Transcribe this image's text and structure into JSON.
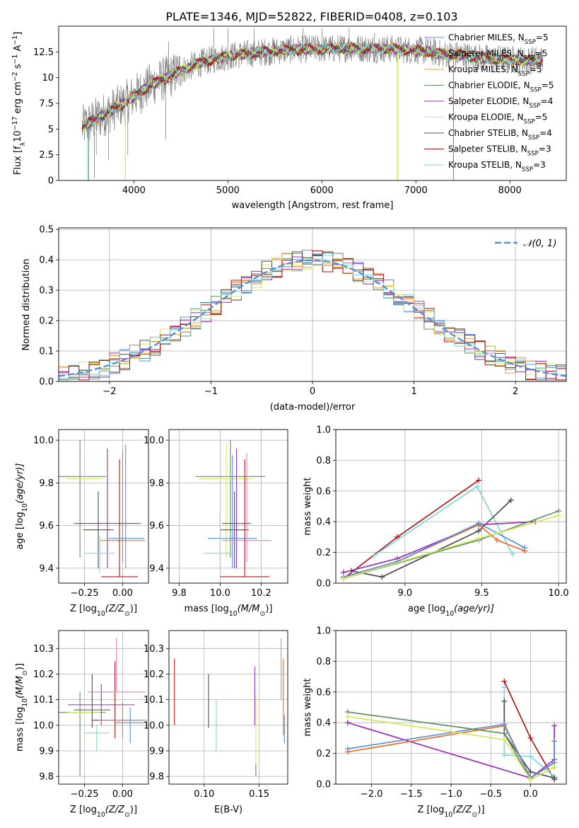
{
  "figure": {
    "title": "PLATE=1346, MJD=52822, FIBERID=0408, z=0.103"
  },
  "colors": {
    "chabrier_miles": "#5b8fd6",
    "salpeter_miles": "#e8702a",
    "kroupa_miles": "#e8a33a",
    "chabrier_elodie": "#5f8f66",
    "salpeter_elodie": "#9b2fb5",
    "kroupa_elodie": "#d6e85a",
    "chabrier_stelib": "#4d4d4d",
    "salpeter_stelib": "#b01818",
    "kroupa_stelib": "#7fd6d6",
    "pink": "#e87fb0",
    "data": "#808080"
  },
  "chart_data": [
    {
      "id": "spectrum",
      "type": "line",
      "xlabel": "wavelength [Angstrom, rest frame]",
      "ylabel_parts": [
        "Flux [f",
        "λ",
        "10",
        "−17",
        " erg cm",
        "−2",
        " s",
        "−1",
        " A",
        "−1",
        "]"
      ],
      "xlim": [
        3200,
        8600
      ],
      "ylim": [
        0,
        15
      ],
      "xticks": [
        4000,
        5000,
        6000,
        7000,
        8000
      ],
      "yticks": [
        "0.0",
        "2.5",
        "5.0",
        "7.5",
        "10.0",
        "12.5"
      ],
      "ytick_values": [
        0,
        2.5,
        5,
        7.5,
        10,
        12.5
      ],
      "continuum_x": [
        3450,
        3600,
        3700,
        3800,
        3900,
        4000,
        4100,
        4200,
        4300,
        4400,
        4500,
        4700,
        4900,
        5100,
        5300,
        5500,
        5700,
        5900,
        6100,
        6300,
        6500,
        6700,
        6900,
        7100,
        7300,
        7500,
        7700,
        7900,
        8100,
        8350
      ],
      "continuum_y": [
        5.2,
        6.0,
        6.5,
        7.0,
        7.5,
        8.2,
        8.8,
        9.4,
        9.8,
        10.2,
        10.7,
        11.4,
        11.9,
        12.2,
        12.4,
        12.6,
        12.7,
        12.8,
        12.8,
        12.9,
        12.8,
        12.8,
        12.7,
        12.6,
        12.3,
        12.2,
        11.9,
        11.8,
        11.7,
        11.7
      ],
      "drops": [
        {
          "x": 3520,
          "y": 0.0
        },
        {
          "x": 3580,
          "y": 0.2
        },
        {
          "x": 3600,
          "y": 2.5
        },
        {
          "x": 3730,
          "y": 2.0
        },
        {
          "x": 3910,
          "y": 0.0
        },
        {
          "x": 3935,
          "y": 2.5
        },
        {
          "x": 4340,
          "y": 4.0
        },
        {
          "x": 6805,
          "y": 0.0
        },
        {
          "x": 7400,
          "y": 0.0
        }
      ],
      "spikes": [
        {
          "x": 4370,
          "y": 13.5
        },
        {
          "x": 4850,
          "y": 14.8
        },
        {
          "x": 5000,
          "y": 14.8
        },
        {
          "x": 5280,
          "y": 14.8
        },
        {
          "x": 5800,
          "y": 14.8
        },
        {
          "x": 6000,
          "y": 14.8
        },
        {
          "x": 6290,
          "y": 14.8
        },
        {
          "x": 6560,
          "y": 14.3
        }
      ],
      "series": [
        {
          "label_parts": [
            "Chabrier MILES, N",
            "SSP",
            "=5"
          ],
          "color": "#5b8fd6"
        },
        {
          "label_parts": [
            "Salpeter MILES, N",
            "SSP",
            "=5"
          ],
          "color": "#e8702a"
        },
        {
          "label_parts": [
            "Kroupa MILES, N",
            "SSP",
            "=5"
          ],
          "color": "#e8a33a"
        },
        {
          "label_parts": [
            "Chabrier ELODIE, N",
            "SSP",
            "=5"
          ],
          "color": "#5f8f66"
        },
        {
          "label_parts": [
            "Salpeter ELODIE, N",
            "SSP",
            "=4"
          ],
          "color": "#9b2fb5"
        },
        {
          "label_parts": [
            "Kroupa ELODIE, N",
            "SSP",
            "=5"
          ],
          "color": "#d6e85a"
        },
        {
          "label_parts": [
            "Chabrier STELIB, N",
            "SSP",
            "=4"
          ],
          "color": "#4d4d4d"
        },
        {
          "label_parts": [
            "Salpeter STELIB, N",
            "SSP",
            "=3"
          ],
          "color": "#b01818"
        },
        {
          "label_parts": [
            "Kroupa STELIB, N",
            "SSP",
            "=3"
          ],
          "color": "#7fd6d6"
        }
      ]
    },
    {
      "id": "residuals",
      "type": "histogram",
      "xlabel": "(data-model)/error",
      "ylabel": "Normed distribution",
      "xlim": [
        -2.5,
        2.5
      ],
      "ylim": [
        0,
        0.505
      ],
      "xticks": [
        -2,
        -1,
        0,
        1,
        2
      ],
      "xticklabels": [
        "−2",
        "−1",
        "0",
        "1",
        "2"
      ],
      "yticks": [
        0.0,
        0.1,
        0.2,
        0.3,
        0.4,
        0.5
      ],
      "yticklabels": [
        "0.0",
        "0.1",
        "0.2",
        "0.3",
        "0.4",
        "0.5"
      ],
      "bin_width": 0.1,
      "normal_label": "𝒩(0, 1)",
      "normal_color": "#5b8fd6",
      "grid": true
    },
    {
      "id": "age_vs_Z",
      "type": "errorbar",
      "xlabel_parts": [
        "Z [log",
        "10",
        "(Z/Z",
        "⊙",
        ")]"
      ],
      "ylabel_parts": [
        "age  [log",
        "10",
        "(age/yr)]"
      ],
      "xlim": [
        -0.42,
        0.17
      ],
      "ylim": [
        9.33,
        10.05
      ],
      "xticks": [
        -0.25,
        0.0
      ],
      "xticklabels": [
        "−0.25",
        "0.00"
      ],
      "yticks": [
        9.4,
        9.6,
        9.8,
        10.0
      ],
      "yticklabels": [
        "9.4",
        "9.6",
        "9.8",
        "10.0"
      ],
      "points": [
        {
          "x": -0.28,
          "xerr": 0.17,
          "y": 9.83,
          "yerr": [
            9.45,
            10.0
          ],
          "color": "#5f8f66"
        },
        {
          "x": -0.25,
          "xerr": 0.12,
          "y": 9.82,
          "yerr": [
            9.45,
            9.99
          ],
          "color": "#d6e85a"
        },
        {
          "x": -0.16,
          "xerr": 0.1,
          "y": 9.58,
          "yerr": [
            9.4,
            9.76
          ],
          "color": "#4d4d4d"
        },
        {
          "x": -0.1,
          "xerr": 0.22,
          "y": 9.61,
          "yerr": [
            9.4,
            9.96
          ],
          "color": "#9b2fb5"
        },
        {
          "x": 0.0,
          "xerr": 0.15,
          "y": 9.53,
          "yerr": [
            9.43,
            9.95
          ],
          "color": "#e8702a"
        },
        {
          "x": -0.15,
          "xerr": 0.1,
          "y": 9.47,
          "yerr": [
            9.38,
            9.55
          ],
          "color": "#7fd6d6"
        },
        {
          "x": -0.02,
          "xerr": 0.12,
          "y": 9.36,
          "yerr": [
            9.36,
            9.91
          ],
          "color": "#b01818"
        },
        {
          "x": 0.02,
          "xerr": 0.12,
          "y": 9.54,
          "yerr": [
            9.4,
            9.98
          ],
          "color": "#5b8fd6"
        }
      ]
    },
    {
      "id": "age_vs_mass",
      "type": "errorbar",
      "xlabel_parts": [
        "mass [log",
        "10",
        "(M/M",
        "⊙",
        ")]"
      ],
      "xlim": [
        9.75,
        10.33
      ],
      "ylim": [
        9.33,
        10.05
      ],
      "xticks": [
        9.8,
        10.0,
        10.2
      ],
      "xticklabels": [
        "9.8",
        "10.0",
        "10.2"
      ],
      "yticks": [
        9.4,
        9.6,
        9.8,
        10.0
      ],
      "yticklabels": [
        "9.4",
        "9.6",
        "9.8",
        "10.0"
      ],
      "points": [
        {
          "x": 10.05,
          "xerr": 0.17,
          "y": 9.83,
          "yerr": [
            9.45,
            10.0
          ],
          "color": "#5f8f66"
        },
        {
          "x": 10.03,
          "xerr": 0.13,
          "y": 9.82,
          "yerr": [
            9.45,
            9.99
          ],
          "color": "#d6e85a"
        },
        {
          "x": 10.07,
          "xerr": 0.07,
          "y": 9.58,
          "yerr": [
            9.4,
            9.76
          ],
          "color": "#4d4d4d"
        },
        {
          "x": 10.08,
          "xerr": 0.07,
          "y": 9.61,
          "yerr": [
            9.4,
            9.96
          ],
          "color": "#9b2fb5"
        },
        {
          "x": 10.06,
          "xerr": 0.12,
          "y": 9.54,
          "yerr": [
            9.4,
            9.93
          ],
          "color": "#5b8fd6"
        },
        {
          "x": 10.13,
          "xerr": 0.12,
          "y": 9.53,
          "yerr": [
            9.43,
            9.94
          ],
          "color": "#e87fb0"
        },
        {
          "x": 10.0,
          "xerr": 0.08,
          "y": 9.47,
          "yerr": [
            9.38,
            9.68
          ],
          "color": "#7fd6d6"
        },
        {
          "x": 10.12,
          "xerr": 0.12,
          "y": 9.36,
          "yerr": [
            9.36,
            9.91
          ],
          "color": "#b01818"
        }
      ]
    },
    {
      "id": "weight_vs_age",
      "type": "line",
      "xlabel_parts": [
        "age  [log",
        "10",
        "(age/yr)]"
      ],
      "ylabel": "mass weight",
      "xlim": [
        8.55,
        10.05
      ],
      "ylim": [
        0,
        1
      ],
      "xticks": [
        9.0,
        9.5,
        10.0
      ],
      "xticklabels": [
        "9.0",
        "9.5",
        "10.0"
      ],
      "yticks": [
        0.0,
        0.2,
        0.4,
        0.6,
        0.8,
        1.0
      ],
      "yticklabels": [
        "0.0",
        "0.2",
        "0.4",
        "0.6",
        "0.8",
        "1.0"
      ],
      "series": [
        {
          "color": "#b01818",
          "x": [
            8.6,
            8.95,
            9.48
          ],
          "y": [
            0.03,
            0.3,
            0.67
          ]
        },
        {
          "color": "#7fd6d6",
          "x": [
            8.8,
            9.47,
            9.7
          ],
          "y": [
            0.18,
            0.63,
            0.19
          ]
        },
        {
          "color": "#4d4d4d",
          "x": [
            8.65,
            8.85,
            9.48,
            9.69
          ],
          "y": [
            0.08,
            0.04,
            0.34,
            0.54
          ]
        },
        {
          "color": "#9b2fb5",
          "x": [
            8.6,
            8.95,
            9.48,
            9.85
          ],
          "y": [
            0.07,
            0.16,
            0.38,
            0.4
          ]
        },
        {
          "color": "#e8702a",
          "x": [
            8.6,
            8.95,
            9.48,
            9.6,
            9.78
          ],
          "y": [
            0.04,
            0.14,
            0.38,
            0.28,
            0.21
          ]
        },
        {
          "color": "#5b8fd6",
          "x": [
            8.6,
            8.95,
            9.48,
            9.78
          ],
          "y": [
            0.04,
            0.14,
            0.39,
            0.23
          ]
        },
        {
          "color": "#5f8f66",
          "x": [
            8.6,
            9.48,
            10.0
          ],
          "y": [
            0.03,
            0.28,
            0.47
          ]
        },
        {
          "color": "#d6e85a",
          "x": [
            8.6,
            9.48,
            10.0
          ],
          "y": [
            0.03,
            0.29,
            0.44
          ]
        }
      ]
    },
    {
      "id": "mass_vs_Z",
      "type": "errorbar",
      "xlabel_parts": [
        "Z [log",
        "10",
        "(Z/Z",
        "⊙",
        ")]"
      ],
      "ylabel_parts": [
        "mass [log",
        "10",
        "(M/M",
        "⊙",
        ")]"
      ],
      "xlim": [
        -0.42,
        0.17
      ],
      "ylim": [
        9.77,
        10.37
      ],
      "xticks": [
        -0.25,
        0.0
      ],
      "xticklabels": [
        "−0.25",
        "0.00"
      ],
      "yticks": [
        9.8,
        9.9,
        10.0,
        10.1,
        10.2,
        10.3
      ],
      "yticklabels": [
        "9.8",
        "9.9",
        "10.0",
        "10.1",
        "10.2",
        "10.3"
      ],
      "points": [
        {
          "x": -0.28,
          "xerr": 0.17,
          "y": 10.05,
          "yerr": [
            9.8,
            10.13
          ],
          "color": "#5f8f66"
        },
        {
          "x": -0.25,
          "xerr": 0.11,
          "y": 10.05,
          "yerr": [
            9.85,
            10.1
          ],
          "color": "#d6e85a"
        },
        {
          "x": -0.2,
          "xerr": 0.12,
          "y": 10.06,
          "yerr": [
            9.99,
            10.2
          ],
          "color": "#4d4d4d"
        },
        {
          "x": -0.14,
          "xerr": 0.22,
          "y": 10.08,
          "yerr": [
            10.0,
            10.16
          ],
          "color": "#9b2fb5"
        },
        {
          "x": -0.05,
          "xerr": 0.15,
          "y": 10.02,
          "yerr": [
            9.95,
            10.25
          ],
          "color": "#b01818"
        },
        {
          "x": -0.04,
          "xerr": 0.19,
          "y": 10.13,
          "yerr": [
            10.13,
            10.34
          ],
          "color": "#e87fb0"
        },
        {
          "x": 0.0,
          "xerr": 0.16,
          "y": 10.02,
          "yerr": [
            9.95,
            10.09
          ],
          "color": "#e8702a"
        },
        {
          "x": 0.05,
          "xerr": 0.1,
          "y": 10.01,
          "yerr": [
            9.93,
            10.07
          ],
          "color": "#5b8fd6"
        },
        {
          "x": -0.17,
          "xerr": 0.08,
          "y": 9.97,
          "yerr": [
            9.9,
            10.0
          ],
          "color": "#7fd6d6"
        }
      ]
    },
    {
      "id": "mass_vs_ebv",
      "type": "errorbar",
      "xlabel": "E(B-V)",
      "xlim": [
        0.068,
        0.176
      ],
      "ylim": [
        9.77,
        10.37
      ],
      "xticks": [
        0.1,
        0.15
      ],
      "xticklabels": [
        "0.10",
        "0.15"
      ],
      "yticks": [
        9.8,
        9.9,
        10.0,
        10.1,
        10.2,
        10.3
      ],
      "yticklabels": [
        "9.8",
        "9.9",
        "10.0",
        "10.1",
        "10.2",
        "10.3"
      ],
      "points": [
        {
          "x": 0.073,
          "y": 10.13,
          "yerr": [
            10.0,
            10.26
          ],
          "color": "#b01818"
        },
        {
          "x": 0.104,
          "y": 10.1,
          "yerr": [
            9.99,
            10.2
          ],
          "color": "#4d4d4d"
        },
        {
          "x": 0.111,
          "y": 10.0,
          "yerr": [
            9.9,
            10.1
          ],
          "color": "#7fd6d6"
        },
        {
          "x": 0.146,
          "y": 10.12,
          "yerr": [
            10.0,
            10.23
          ],
          "color": "#9b2fb5"
        },
        {
          "x": 0.147,
          "y": 9.95,
          "yerr": [
            9.8,
            10.12
          ],
          "color": "#d6e85a"
        },
        {
          "x": 0.147,
          "y": 9.8,
          "yerr": [
            9.8,
            9.85
          ],
          "color": "#5f8f66"
        },
        {
          "x": 0.17,
          "y": 10.2,
          "yerr": [
            10.1,
            10.34
          ],
          "color": "#e87fb0"
        },
        {
          "x": 0.172,
          "y": 10.08,
          "yerr": [
            9.96,
            10.26
          ],
          "color": "#e8702a"
        },
        {
          "x": 0.173,
          "y": 9.96,
          "yerr": [
            9.93,
            10.04
          ],
          "color": "#5b8fd6"
        }
      ]
    },
    {
      "id": "weight_vs_Z",
      "type": "line",
      "xlabel_parts": [
        "Z [log",
        "10",
        "(Z/Z",
        "⊙",
        ")]"
      ],
      "ylabel": "mass weight",
      "xlim": [
        -2.45,
        0.45
      ],
      "ylim": [
        0,
        1
      ],
      "xticks": [
        -2.0,
        -1.5,
        -1.0,
        -0.5,
        0.0
      ],
      "xticklabels": [
        "−2.0",
        "−1.5",
        "−1.0",
        "−0.5",
        "0.0"
      ],
      "yticks": [
        0.0,
        0.2,
        0.4,
        0.6,
        0.8,
        1.0
      ],
      "yticklabels": [
        "0.0",
        "0.2",
        "0.4",
        "0.6",
        "0.8",
        "1.0"
      ],
      "series": [
        {
          "color": "#b01818",
          "x": [
            -0.33,
            0.0,
            0.3
          ],
          "y": [
            0.67,
            0.3,
            0.03
          ]
        },
        {
          "color": "#7fd6d6",
          "x": [
            -0.33,
            -0.33,
            0.0,
            0.3
          ],
          "y": [
            0.63,
            0.19,
            0.18,
            0.05
          ]
        },
        {
          "color": "#4d4d4d",
          "x": [
            -0.33,
            -0.33,
            0.0,
            0.3
          ],
          "y": [
            0.54,
            0.33,
            0.08,
            0.04
          ]
        },
        {
          "color": "#9b2fb5",
          "x": [
            -2.3,
            0.0,
            0.3,
            0.3
          ],
          "y": [
            0.4,
            0.04,
            0.16,
            0.38
          ]
        },
        {
          "color": "#e8702a",
          "x": [
            -2.3,
            -0.33,
            0.0,
            0.3,
            0.3
          ],
          "y": [
            0.21,
            0.38,
            0.04,
            0.14,
            0.28
          ]
        },
        {
          "color": "#5b8fd6",
          "x": [
            -2.3,
            -0.33,
            0.0,
            0.3,
            0.3
          ],
          "y": [
            0.23,
            0.39,
            0.04,
            0.14,
            0.28
          ]
        },
        {
          "color": "#5f8f66",
          "x": [
            -2.3,
            -0.33,
            0.0,
            0.3
          ],
          "y": [
            0.47,
            0.33,
            0.03,
            0.11
          ]
        },
        {
          "color": "#d6e85a",
          "x": [
            -2.3,
            -0.33,
            0.0,
            0.3
          ],
          "y": [
            0.44,
            0.29,
            0.03,
            0.11
          ]
        }
      ]
    }
  ]
}
